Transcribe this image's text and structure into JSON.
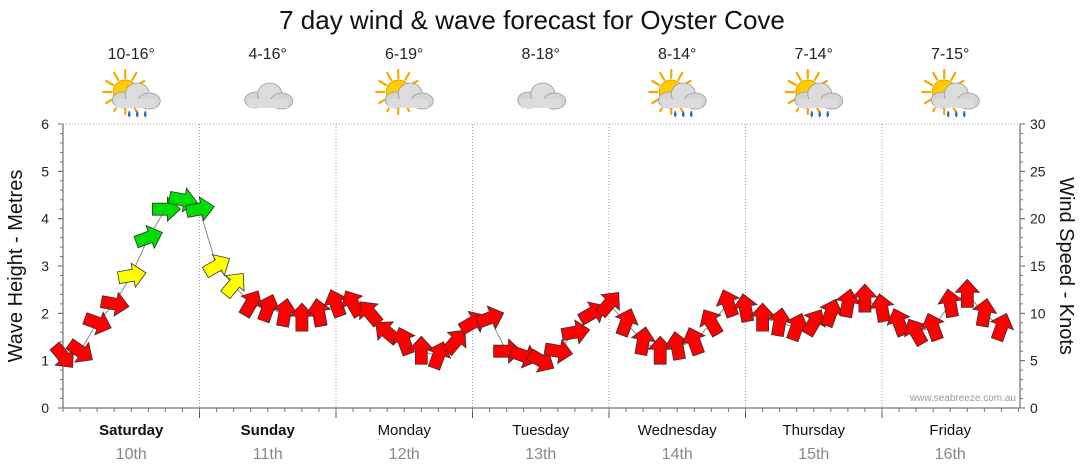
{
  "chart_data": {
    "type": "line",
    "title": "7 day wind & wave forecast for Oyster Cove",
    "ylabel_left": "Wave Height - Metres",
    "ylabel_right": "Wind Speed - Knots",
    "ylim_left": [
      0,
      6
    ],
    "ylim_right": [
      0,
      30
    ],
    "yticks_left": [
      "0",
      "1",
      "2",
      "3",
      "4",
      "5",
      "6"
    ],
    "yticks_right": [
      "0",
      "5",
      "10",
      "15",
      "20",
      "25",
      "30"
    ],
    "credit": "www.seabreeze.com.au",
    "days": [
      {
        "name": "Saturday",
        "date": "10th",
        "temp": "10-16°",
        "icon": "sun-cloud-rain-icon",
        "bold": true
      },
      {
        "name": "Sunday",
        "date": "11th",
        "temp": "4-16°",
        "icon": "cloud-icon",
        "bold": true
      },
      {
        "name": "Monday",
        "date": "12th",
        "temp": "6-19°",
        "icon": "sun-cloud-icon",
        "bold": false
      },
      {
        "name": "Tuesday",
        "date": "13th",
        "temp": "8-18°",
        "icon": "cloud-icon",
        "bold": false
      },
      {
        "name": "Wednesday",
        "date": "14th",
        "temp": "8-14°",
        "icon": "sun-cloud-rain-icon",
        "bold": false
      },
      {
        "name": "Thursday",
        "date": "15th",
        "temp": "7-14°",
        "icon": "sun-cloud-rain-icon",
        "bold": false
      },
      {
        "name": "Friday",
        "date": "16th",
        "temp": "7-15°",
        "icon": "sun-cloud-rain-icon",
        "bold": false
      }
    ],
    "colors": {
      "light": "#ff0000",
      "moderate": "#ffff00",
      "strong": "#00dd00"
    },
    "series": [
      {
        "name": "Wind Speed",
        "unit": "knots",
        "hours": [
          0,
          3,
          6,
          9,
          12,
          15,
          18,
          21,
          24,
          27,
          30,
          33,
          36,
          39,
          42,
          45,
          48,
          51,
          54,
          57,
          60,
          63,
          66,
          69,
          72,
          75,
          78,
          81,
          84,
          87,
          90,
          93,
          96,
          99,
          102,
          105,
          108,
          111,
          114,
          117,
          120,
          123,
          126,
          129,
          132,
          135,
          138,
          141,
          144,
          147,
          150,
          153,
          156,
          159,
          162,
          165
        ],
        "values": [
          5.5,
          6,
          9,
          11,
          14,
          18,
          21,
          22,
          21,
          15,
          13,
          11,
          10.5,
          10,
          9.5,
          10,
          11,
          11,
          10,
          8,
          7,
          6,
          5.5,
          7,
          9,
          9.5,
          6,
          5.5,
          5,
          6,
          8,
          10,
          11,
          9,
          7,
          6,
          6.5,
          7,
          9,
          11,
          10.5,
          9.5,
          9,
          8.5,
          9,
          10,
          11,
          11.5,
          10.5,
          9,
          8,
          8.5,
          11,
          12,
          10,
          8.5
        ],
        "wind_color_class": [
          "light",
          "light",
          "light",
          "light",
          "moderate",
          "strong",
          "strong",
          "strong",
          "strong",
          "moderate",
          "moderate",
          "light",
          "light",
          "light",
          "light",
          "light",
          "light",
          "light",
          "light",
          "light",
          "light",
          "light",
          "light",
          "light",
          "light",
          "light",
          "light",
          "light",
          "light",
          "light",
          "light",
          "light",
          "light",
          "light",
          "light",
          "light",
          "light",
          "light",
          "light",
          "light",
          "light",
          "light",
          "light",
          "light",
          "light",
          "light",
          "light",
          "light",
          "light",
          "light",
          "light",
          "light",
          "light",
          "light",
          "light",
          "light"
        ]
      }
    ]
  }
}
